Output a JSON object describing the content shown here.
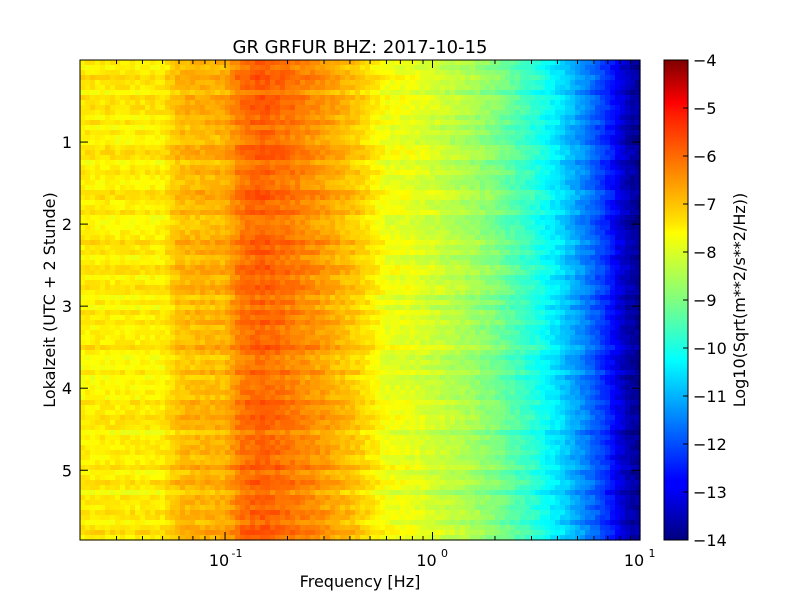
{
  "chart_data": {
    "type": "heatmap",
    "title": "GR GRFUR BHZ: 2017-10-15",
    "xlabel": "Frequency [Hz]",
    "ylabel": "Lokalzeit (UTC + 2 Stunde)",
    "x_scale": "log",
    "xlim": [
      0.02,
      10
    ],
    "ylim": [
      0,
      5.85
    ],
    "y_inverted": true,
    "x_ticks": [
      {
        "value": 0.1,
        "base": "10",
        "exp": "-1"
      },
      {
        "value": 1,
        "base": "10",
        "exp": "0"
      },
      {
        "value": 10,
        "base": "10",
        "exp": "1"
      }
    ],
    "y_ticks": [
      {
        "value": 1,
        "label": "1"
      },
      {
        "value": 2,
        "label": "2"
      },
      {
        "value": 3,
        "label": "3"
      },
      {
        "value": 4,
        "label": "4"
      },
      {
        "value": 5,
        "label": "5"
      }
    ],
    "colorbar": {
      "label": "Log10(Sqrt(m**2/s**2/Hz))",
      "range": [
        -14,
        -4
      ],
      "colormap": "jet",
      "ticks": [
        {
          "value": -4,
          "label": "−4"
        },
        {
          "value": -5,
          "label": "−5"
        },
        {
          "value": -6,
          "label": "−6"
        },
        {
          "value": -7,
          "label": "−7"
        },
        {
          "value": -8,
          "label": "−8"
        },
        {
          "value": -9,
          "label": "−9"
        },
        {
          "value": -10,
          "label": "−10"
        },
        {
          "value": -11,
          "label": "−11"
        },
        {
          "value": -12,
          "label": "−12"
        },
        {
          "value": -13,
          "label": "−13"
        },
        {
          "value": -14,
          "label": "−14"
        }
      ]
    },
    "frequency_profile": [
      {
        "freq": 0.02,
        "value": -7.6
      },
      {
        "freq": 0.05,
        "value": -7.6
      },
      {
        "freq": 0.06,
        "value": -7.1
      },
      {
        "freq": 0.1,
        "value": -7.0
      },
      {
        "freq": 0.12,
        "value": -6.4
      },
      {
        "freq": 0.15,
        "value": -6.2
      },
      {
        "freq": 0.2,
        "value": -6.4
      },
      {
        "freq": 0.3,
        "value": -6.8
      },
      {
        "freq": 0.45,
        "value": -7.3
      },
      {
        "freq": 0.6,
        "value": -7.9
      },
      {
        "freq": 0.8,
        "value": -8.0
      },
      {
        "freq": 1.0,
        "value": -8.2
      },
      {
        "freq": 1.5,
        "value": -8.6
      },
      {
        "freq": 2.0,
        "value": -9.0
      },
      {
        "freq": 3.0,
        "value": -9.8
      },
      {
        "freq": 4.0,
        "value": -10.5
      },
      {
        "freq": 5.0,
        "value": -11.2
      },
      {
        "freq": 6.0,
        "value": -11.8
      },
      {
        "freq": 7.0,
        "value": -12.4
      },
      {
        "freq": 8.0,
        "value": -13.1
      },
      {
        "freq": 9.0,
        "value": -13.6
      },
      {
        "freq": 10.0,
        "value": -13.8
      }
    ]
  }
}
